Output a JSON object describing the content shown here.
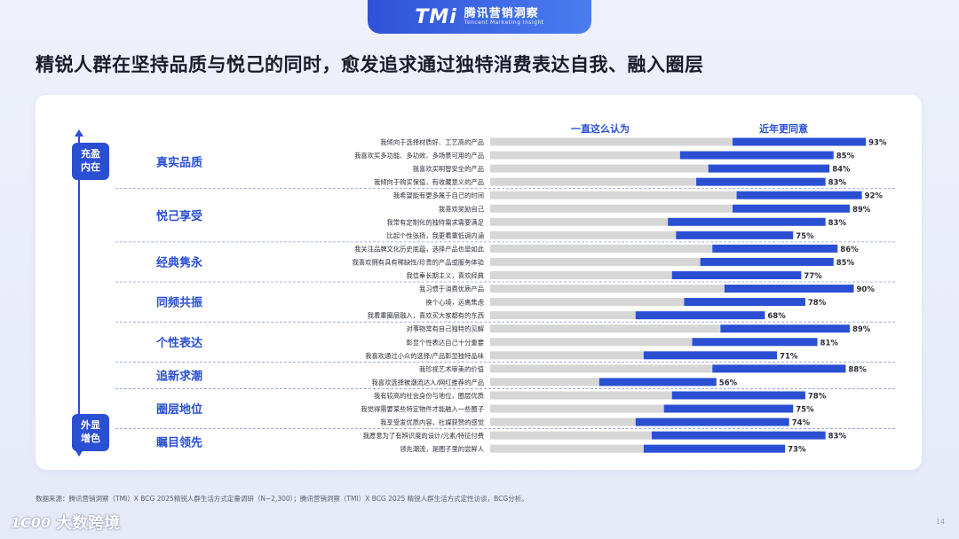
{
  "header": {
    "logo_mark": "TMi",
    "logo_cn": "腾讯营销洞察",
    "logo_en": "Tencent Marketing Insight"
  },
  "title": "精锐人群在坚持品质与悦己的同时，愈发追求通过独特消费表达自我、融入圈层",
  "axis": {
    "top_badge": [
      "充盈",
      "内在"
    ],
    "bottom_badge": [
      "外显",
      "增色"
    ]
  },
  "legend": {
    "base": "一直这么认为",
    "recent": "近年更同意"
  },
  "colors": {
    "base": "#d6d6d6",
    "recent": "#2b4fd3",
    "category": "#2b4fd3"
  },
  "chart_data": {
    "type": "bar",
    "orientation": "horizontal",
    "stacked": true,
    "unit": "%",
    "xlim": [
      0,
      100
    ],
    "series": [
      {
        "name": "一直这么认为",
        "key": "base"
      },
      {
        "name": "近年更同意",
        "key": "recent"
      }
    ],
    "groups": [
      {
        "category": "真实品质",
        "items": [
          {
            "label": "我倾向于选择材质好、工艺高的产品",
            "base": 60,
            "total": 93
          },
          {
            "label": "我喜欢买多功能、多功效、多场景可用的产品",
            "base": 47,
            "total": 85
          },
          {
            "label": "我喜欢买明智安全的产品",
            "base": 54,
            "total": 84
          },
          {
            "label": "我倾向于购买保值，有收藏意义的产品",
            "base": 51,
            "total": 83
          }
        ]
      },
      {
        "category": "悦己享受",
        "items": [
          {
            "label": "我希望能有更多属于自己的时间",
            "base": 61,
            "total": 92
          },
          {
            "label": "我喜欢奖励自己",
            "base": 60,
            "total": 89
          },
          {
            "label": "我常有定制化的独特需求需要满足",
            "base": 44,
            "total": 83
          },
          {
            "label": "比起个性张扬，我更看重低调内涵",
            "base": 46,
            "total": 75
          }
        ]
      },
      {
        "category": "经典隽永",
        "items": [
          {
            "label": "我关注品牌文化历史底蕴，选择产品也是如此",
            "base": 55,
            "total": 86
          },
          {
            "label": "我喜欢拥有具有稀缺性/珍贵的产品或服务体验",
            "base": 52,
            "total": 85
          },
          {
            "label": "我信奉长期主义，喜欢经典",
            "base": 45,
            "total": 77
          }
        ]
      },
      {
        "category": "同频共振",
        "items": [
          {
            "label": "我习惯于消费优质产品",
            "base": 58,
            "total": 90
          },
          {
            "label": "换个心境，远离焦虑",
            "base": 48,
            "total": 78
          },
          {
            "label": "我看重圈层融入，喜欢买大家都有的东西",
            "base": 36,
            "total": 68
          }
        ]
      },
      {
        "category": "个性表达",
        "items": [
          {
            "label": "对事物常有自己独特的见解",
            "base": 57,
            "total": 89
          },
          {
            "label": "彰显个性表达自己十分重要",
            "base": 50,
            "total": 81
          },
          {
            "label": "我喜欢通过小众的选择/产品彰显独特品味",
            "base": 38,
            "total": 71
          }
        ]
      },
      {
        "category": "追新求潮",
        "items": [
          {
            "label": "我珍视艺术审美的价值",
            "base": 55,
            "total": 88
          },
          {
            "label": "我喜欢选择被潮流达人/网红推荐的产品",
            "base": 27,
            "total": 56
          }
        ]
      },
      {
        "category": "圈层地位",
        "items": [
          {
            "label": "我有较高的社会身份与地位，圈层优质",
            "base": 45,
            "total": 78
          },
          {
            "label": "我觉得需要某些特定物件才能融入一些圈子",
            "base": 43,
            "total": 75
          },
          {
            "label": "我享受发优质内容，社媒获赞的感觉",
            "base": 36,
            "total": 74
          }
        ]
      },
      {
        "category": "瞩目领先",
        "items": [
          {
            "label": "我愿意为了有辨识度的设计/元素/特征付费",
            "base": 40,
            "total": 83
          },
          {
            "label": "领先潮流，是圈子里的尝鲜人",
            "base": 38,
            "total": 73
          }
        ]
      }
    ]
  },
  "footnote": "数据来源：腾讯营销洞察（TMI）X BCG 2025精锐人群生活方式定量调研（N~2,300）；腾讯营销洞察（TMI）X BCG 2025 精锐人群生活方式定性访谈，BCG分析。",
  "watermark": {
    "logo": "1C00",
    "text": "大数跨境"
  },
  "page_number": "14"
}
